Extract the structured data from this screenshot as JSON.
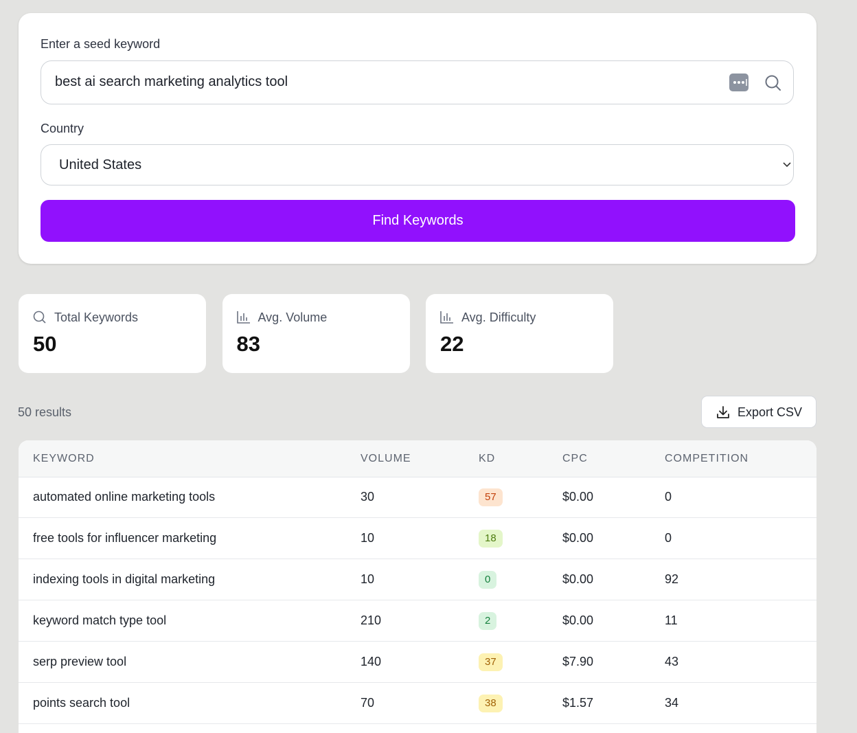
{
  "form": {
    "seed_label": "Enter a seed keyword",
    "seed_value": "best ai search marketing analytics tool",
    "country_label": "Country",
    "country_value": "United States",
    "button": "Find Keywords"
  },
  "stats": [
    {
      "label": "Total Keywords",
      "value": 50
    },
    {
      "label": "Avg. Volume",
      "value": 83
    },
    {
      "label": "Avg. Difficulty",
      "value": 22
    }
  ],
  "results_count": "50 results",
  "export_button": "Export CSV",
  "table": {
    "columns": [
      "KEYWORD",
      "VOLUME",
      "KD",
      "CPC",
      "COMPETITION"
    ],
    "rows": [
      [
        "automated online marketing tools",
        30,
        57,
        "$0.00",
        0
      ],
      [
        "free tools for influencer marketing",
        10,
        18,
        "$0.00",
        0
      ],
      [
        "indexing tools in digital marketing",
        10,
        0,
        "$0.00",
        92
      ],
      [
        "keyword match type tool",
        210,
        2,
        "$0.00",
        11
      ],
      [
        "serp preview tool",
        140,
        37,
        "$7.90",
        43
      ],
      [
        "points search tool",
        70,
        38,
        "$1.57",
        34
      ]
    ]
  }
}
